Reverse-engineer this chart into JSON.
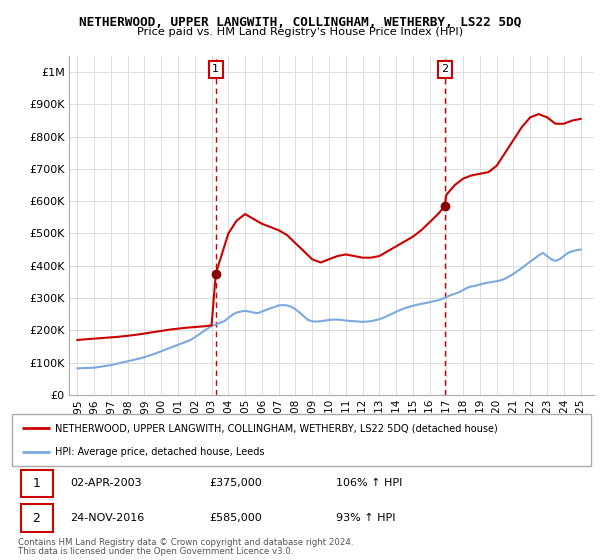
{
  "title": "NETHERWOOD, UPPER LANGWITH, COLLINGHAM, WETHERBY, LS22 5DQ",
  "subtitle": "Price paid vs. HM Land Registry's House Price Index (HPI)",
  "legend_line1": "NETHERWOOD, UPPER LANGWITH, COLLINGHAM, WETHERBY, LS22 5DQ (detached house)",
  "legend_line2": "HPI: Average price, detached house, Leeds",
  "footer1": "Contains HM Land Registry data © Crown copyright and database right 2024.",
  "footer2": "This data is licensed under the Open Government Licence v3.0.",
  "sale1_label": "1",
  "sale1_date": "02-APR-2003",
  "sale1_price": "£375,000",
  "sale1_hpi": "106% ↑ HPI",
  "sale1_year": 2003.25,
  "sale1_value": 375000,
  "sale2_label": "2",
  "sale2_date": "24-NOV-2016",
  "sale2_price": "£585,000",
  "sale2_hpi": "93% ↑ HPI",
  "sale2_year": 2016.9,
  "sale2_value": 585000,
  "red_color": "#cc0000",
  "blue_color": "#7aaadd",
  "background_color": "#ffffff",
  "grid_color": "#dddddd",
  "ylim": [
    0,
    1050000
  ],
  "xlim": [
    1994.5,
    2025.8
  ],
  "yticks": [
    0,
    100000,
    200000,
    300000,
    400000,
    500000,
    600000,
    700000,
    800000,
    900000,
    1000000
  ],
  "ytick_labels": [
    "£0",
    "£100K",
    "£200K",
    "£300K",
    "£400K",
    "£500K",
    "£600K",
    "£700K",
    "£800K",
    "£900K",
    "£1M"
  ],
  "xticks": [
    1995,
    1996,
    1997,
    1998,
    1999,
    2000,
    2001,
    2002,
    2003,
    2004,
    2005,
    2006,
    2007,
    2008,
    2009,
    2010,
    2011,
    2012,
    2013,
    2014,
    2015,
    2016,
    2017,
    2018,
    2019,
    2020,
    2021,
    2022,
    2023,
    2024,
    2025
  ],
  "hpi_years": [
    1995.0,
    1995.25,
    1995.5,
    1995.75,
    1996.0,
    1996.25,
    1996.5,
    1996.75,
    1997.0,
    1997.25,
    1997.5,
    1997.75,
    1998.0,
    1998.25,
    1998.5,
    1998.75,
    1999.0,
    1999.25,
    1999.5,
    1999.75,
    2000.0,
    2000.25,
    2000.5,
    2000.75,
    2001.0,
    2001.25,
    2001.5,
    2001.75,
    2002.0,
    2002.25,
    2002.5,
    2002.75,
    2003.0,
    2003.25,
    2003.5,
    2003.75,
    2004.0,
    2004.25,
    2004.5,
    2004.75,
    2005.0,
    2005.25,
    2005.5,
    2005.75,
    2006.0,
    2006.25,
    2006.5,
    2006.75,
    2007.0,
    2007.25,
    2007.5,
    2007.75,
    2008.0,
    2008.25,
    2008.5,
    2008.75,
    2009.0,
    2009.25,
    2009.5,
    2009.75,
    2010.0,
    2010.25,
    2010.5,
    2010.75,
    2011.0,
    2011.25,
    2011.5,
    2011.75,
    2012.0,
    2012.25,
    2012.5,
    2012.75,
    2013.0,
    2013.25,
    2013.5,
    2013.75,
    2014.0,
    2014.25,
    2014.5,
    2014.75,
    2015.0,
    2015.25,
    2015.5,
    2015.75,
    2016.0,
    2016.25,
    2016.5,
    2016.75,
    2017.0,
    2017.25,
    2017.5,
    2017.75,
    2018.0,
    2018.25,
    2018.5,
    2018.75,
    2019.0,
    2019.25,
    2019.5,
    2019.75,
    2020.0,
    2020.25,
    2020.5,
    2020.75,
    2021.0,
    2021.25,
    2021.5,
    2021.75,
    2022.0,
    2022.25,
    2022.5,
    2022.75,
    2023.0,
    2023.25,
    2023.5,
    2023.75,
    2024.0,
    2024.25,
    2024.5,
    2024.75,
    2025.0
  ],
  "hpi_values": [
    82000,
    82500,
    83000,
    83500,
    84000,
    86000,
    88000,
    90000,
    92000,
    95000,
    98000,
    101000,
    104000,
    107000,
    110000,
    113000,
    117000,
    121000,
    125000,
    130000,
    135000,
    140000,
    145000,
    150000,
    155000,
    160000,
    165000,
    170000,
    178000,
    187000,
    196000,
    205000,
    213000,
    218000,
    223000,
    228000,
    238000,
    248000,
    255000,
    258000,
    260000,
    258000,
    255000,
    253000,
    258000,
    263000,
    268000,
    272000,
    277000,
    278000,
    277000,
    273000,
    265000,
    255000,
    243000,
    232000,
    228000,
    227000,
    228000,
    230000,
    232000,
    233000,
    233000,
    232000,
    230000,
    229000,
    228000,
    227000,
    226000,
    227000,
    228000,
    231000,
    234000,
    239000,
    245000,
    251000,
    257000,
    263000,
    268000,
    272000,
    276000,
    279000,
    282000,
    284000,
    287000,
    290000,
    293000,
    297000,
    303000,
    309000,
    313000,
    318000,
    325000,
    332000,
    336000,
    338000,
    342000,
    345000,
    348000,
    350000,
    352000,
    355000,
    360000,
    367000,
    375000,
    384000,
    393000,
    403000,
    413000,
    422000,
    432000,
    440000,
    430000,
    420000,
    415000,
    420000,
    430000,
    440000,
    445000,
    448000,
    450000
  ],
  "red_years": [
    1995.0,
    1995.5,
    1996.0,
    1996.5,
    1997.0,
    1997.5,
    1998.0,
    1998.5,
    1999.0,
    1999.5,
    2000.0,
    2000.5,
    2001.0,
    2001.5,
    2002.0,
    2002.5,
    2003.0,
    2003.25,
    2004.0,
    2004.5,
    2005.0,
    2005.5,
    2006.0,
    2006.5,
    2007.0,
    2007.5,
    2008.0,
    2008.5,
    2009.0,
    2009.5,
    2010.0,
    2010.5,
    2011.0,
    2011.5,
    2012.0,
    2012.5,
    2013.0,
    2013.5,
    2014.0,
    2014.5,
    2015.0,
    2015.5,
    2016.0,
    2016.5,
    2016.9,
    2017.0,
    2017.5,
    2018.0,
    2018.5,
    2019.0,
    2019.5,
    2020.0,
    2020.5,
    2021.0,
    2021.5,
    2022.0,
    2022.5,
    2023.0,
    2023.5,
    2024.0,
    2024.5,
    2025.0
  ],
  "red_values": [
    170000,
    172000,
    174000,
    176000,
    178000,
    180000,
    183000,
    186000,
    190000,
    194000,
    198000,
    202000,
    205000,
    208000,
    210000,
    212000,
    215000,
    375000,
    500000,
    540000,
    560000,
    545000,
    530000,
    520000,
    510000,
    495000,
    470000,
    445000,
    420000,
    410000,
    420000,
    430000,
    435000,
    430000,
    425000,
    425000,
    430000,
    445000,
    460000,
    475000,
    490000,
    510000,
    535000,
    560000,
    585000,
    620000,
    650000,
    670000,
    680000,
    685000,
    690000,
    710000,
    750000,
    790000,
    830000,
    860000,
    870000,
    860000,
    840000,
    840000,
    850000,
    855000
  ]
}
